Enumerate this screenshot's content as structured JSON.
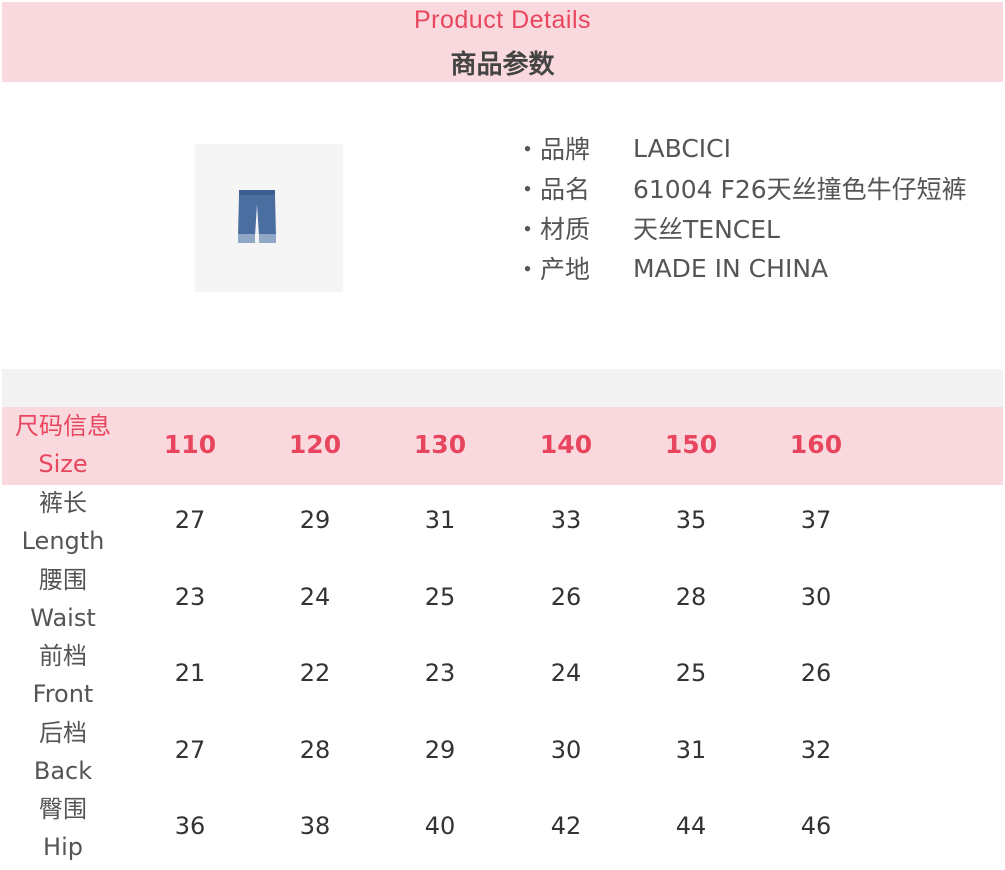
{
  "header": {
    "title_en": "Product Details",
    "title_zh": "商品参数"
  },
  "product": {
    "image": "denim-shorts-image",
    "specs": [
      {
        "key": "・品牌",
        "value": "LABCICI"
      },
      {
        "key": "・品名",
        "value": "61004  F26天丝撞色牛仔短裤"
      },
      {
        "key": "・材质",
        "value": "天丝TENCEL"
      },
      {
        "key": "・产地",
        "value": "MADE  IN  CHINA"
      }
    ]
  },
  "size_table": {
    "header_zh": "尺码信息",
    "header_en": "Size",
    "sizes": [
      "110",
      "120",
      "130",
      "140",
      "150",
      "160"
    ],
    "rows": [
      {
        "zh": "裤长",
        "en": "Length",
        "values": [
          "27",
          "29",
          "31",
          "33",
          "35",
          "37"
        ]
      },
      {
        "zh": "腰围",
        "en": "Waist",
        "values": [
          "23",
          "24",
          "25",
          "26",
          "28",
          "30"
        ]
      },
      {
        "zh": "前档",
        "en": "Front",
        "values": [
          "21",
          "22",
          "23",
          "24",
          "25",
          "26"
        ]
      },
      {
        "zh": "后档",
        "en": "Back",
        "values": [
          "27",
          "28",
          "29",
          "30",
          "31",
          "32"
        ]
      },
      {
        "zh": "臀围",
        "en": "Hip",
        "values": [
          "36",
          "38",
          "40",
          "42",
          "44",
          "46"
        ]
      }
    ]
  },
  "colors": {
    "accent": "#e8465e",
    "band": "#fad9de",
    "gray_band": "#f2f2f2"
  }
}
